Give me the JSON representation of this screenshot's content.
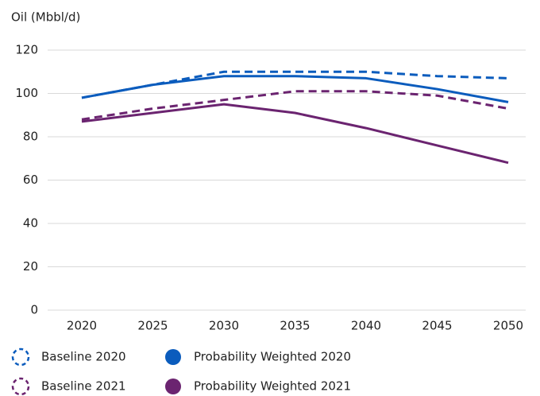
{
  "chart_data": {
    "type": "line",
    "y_label": "Oil (Mbbl/d)",
    "categories": [
      "2020",
      "2025",
      "2030",
      "2035",
      "2040",
      "2045",
      "2050"
    ],
    "ylim": [
      0,
      120
    ],
    "yticks": [
      0,
      20,
      40,
      60,
      80,
      100,
      120
    ],
    "grid": true,
    "series": [
      {
        "name": "Baseline 2020",
        "color": "#0b5cbd",
        "dashed": true,
        "values": [
          98,
          104,
          110,
          110,
          110,
          108,
          107
        ]
      },
      {
        "name": "Probability Weighted 2020",
        "color": "#0b5cbd",
        "dashed": false,
        "values": [
          98,
          104,
          108,
          108,
          107,
          102,
          96
        ]
      },
      {
        "name": "Baseline 2021",
        "color": "#6b2470",
        "dashed": true,
        "values": [
          88,
          93,
          97,
          101,
          101,
          99,
          93
        ]
      },
      {
        "name": "Probability Weighted 2021",
        "color": "#6b2470",
        "dashed": false,
        "values": [
          87,
          91,
          95,
          91,
          84,
          76,
          68
        ]
      }
    ]
  }
}
